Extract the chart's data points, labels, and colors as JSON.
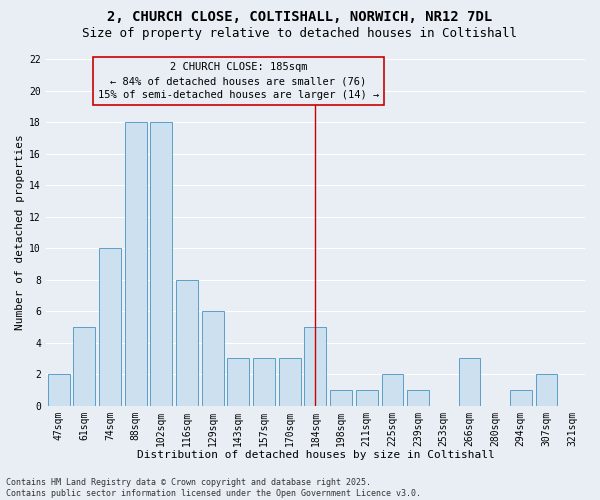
{
  "title1": "2, CHURCH CLOSE, COLTISHALL, NORWICH, NR12 7DL",
  "title2": "Size of property relative to detached houses in Coltishall",
  "xlabel": "Distribution of detached houses by size in Coltishall",
  "ylabel": "Number of detached properties",
  "footnote1": "Contains HM Land Registry data © Crown copyright and database right 2025.",
  "footnote2": "Contains public sector information licensed under the Open Government Licence v3.0.",
  "categories": [
    "47sqm",
    "61sqm",
    "74sqm",
    "88sqm",
    "102sqm",
    "116sqm",
    "129sqm",
    "143sqm",
    "157sqm",
    "170sqm",
    "184sqm",
    "198sqm",
    "211sqm",
    "225sqm",
    "239sqm",
    "253sqm",
    "266sqm",
    "280sqm",
    "294sqm",
    "307sqm",
    "321sqm"
  ],
  "values": [
    2,
    5,
    10,
    18,
    18,
    8,
    6,
    3,
    3,
    3,
    5,
    1,
    1,
    2,
    1,
    0,
    3,
    0,
    1,
    2,
    0
  ],
  "bar_color": "#cde0f0",
  "bar_edge_color": "#5a9fc8",
  "highlight_index": 10,
  "highlight_line_color": "#cc0000",
  "highlight_label": "2 CHURCH CLOSE: 185sqm",
  "annotation_line1": "← 84% of detached houses are smaller (76)",
  "annotation_line2": "15% of semi-detached houses are larger (14) →",
  "ylim": [
    0,
    22
  ],
  "yticks": [
    0,
    2,
    4,
    6,
    8,
    10,
    12,
    14,
    16,
    18,
    20,
    22
  ],
  "bg_color": "#e8eef4",
  "grid_color": "#ffffff",
  "annotation_box_color": "#cc0000",
  "title_fontsize": 10,
  "subtitle_fontsize": 9,
  "axis_label_fontsize": 8,
  "tick_fontsize": 7,
  "annotation_fontsize": 7.5,
  "footnote_fontsize": 6
}
